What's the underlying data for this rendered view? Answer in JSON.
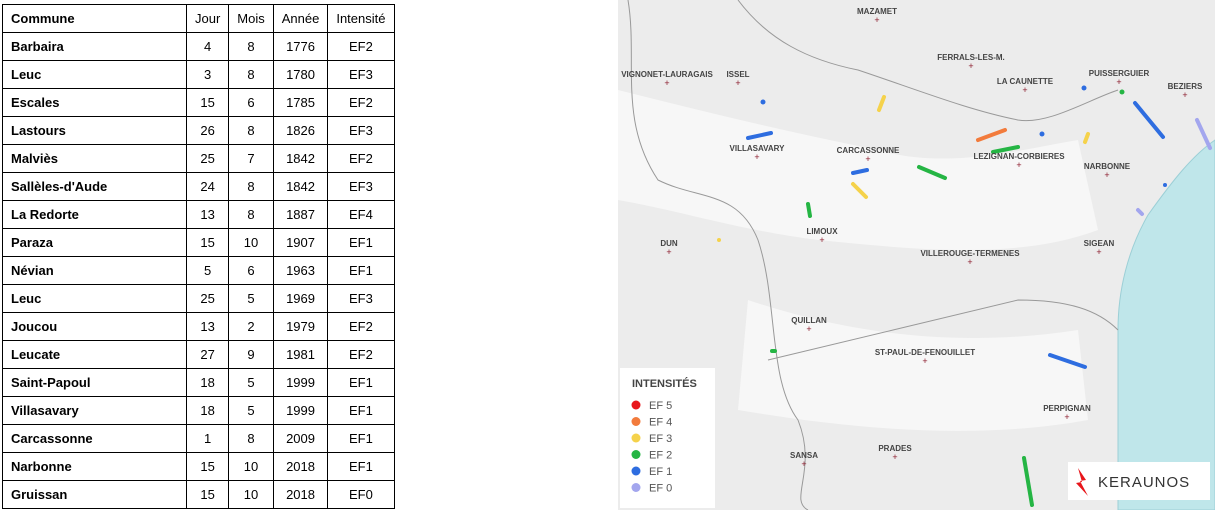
{
  "table": {
    "header": [
      "Commune",
      "Jour",
      "Mois",
      "Année",
      "Intensité"
    ],
    "rows": [
      [
        "Barbaira",
        4,
        8,
        1776,
        "EF2"
      ],
      [
        "Leuc",
        3,
        8,
        1780,
        "EF3"
      ],
      [
        "Escales",
        15,
        6,
        1785,
        "EF2"
      ],
      [
        "Lastours",
        26,
        8,
        1826,
        "EF3"
      ],
      [
        "Malviès",
        25,
        7,
        1842,
        "EF2"
      ],
      [
        "Sallèles-d'Aude",
        24,
        8,
        1842,
        "EF3"
      ],
      [
        "La Redorte",
        13,
        8,
        1887,
        "EF4"
      ],
      [
        "Paraza",
        15,
        10,
        1907,
        "EF1"
      ],
      [
        "Névian",
        5,
        6,
        1963,
        "EF1"
      ],
      [
        "Leuc",
        25,
        5,
        1969,
        "EF3"
      ],
      [
        "Joucou",
        13,
        2,
        1979,
        "EF2"
      ],
      [
        "Leucate",
        27,
        9,
        1981,
        "EF2"
      ],
      [
        "Saint-Papoul",
        18,
        5,
        1999,
        "EF1"
      ],
      [
        "Villasavary",
        18,
        5,
        1999,
        "EF1"
      ],
      [
        "Carcassonne",
        1,
        8,
        2009,
        "EF1"
      ],
      [
        "Narbonne",
        15,
        10,
        2018,
        "EF1"
      ],
      [
        "Gruissan",
        15,
        10,
        2018,
        "EF0"
      ]
    ]
  },
  "map": {
    "places": [
      "MAZAMET",
      "FERRALS-LES-M.",
      "VIGNONET-LAURAGAIS",
      "ISSEL",
      "LA CAUNETTE",
      "PUISSERGUIER",
      "BEZIERS",
      "VILLASAVARY",
      "CARCASSONNE",
      "LEZIGNAN-CORBIERES",
      "NARBONNE",
      "LIMOUX",
      "DUN",
      "VILLEROUGE-TERMENES",
      "SIGEAN",
      "QUILLAN",
      "ST-PAUL-DE-FENOUILLET",
      "PERPIGNAN",
      "SANSA",
      "PRADES"
    ],
    "legend": {
      "title": "INTENSITÉS",
      "items": [
        {
          "label": "EF 5",
          "color": "#e8161b"
        },
        {
          "label": "EF 4",
          "color": "#f27b3c"
        },
        {
          "label": "EF 3",
          "color": "#f5d24b"
        },
        {
          "label": "EF 2",
          "color": "#25b544"
        },
        {
          "label": "EF 1",
          "color": "#2e6de0"
        },
        {
          "label": "EF 0",
          "color": "#a3a6ee"
        }
      ]
    },
    "logo": "KERAUNOS"
  }
}
